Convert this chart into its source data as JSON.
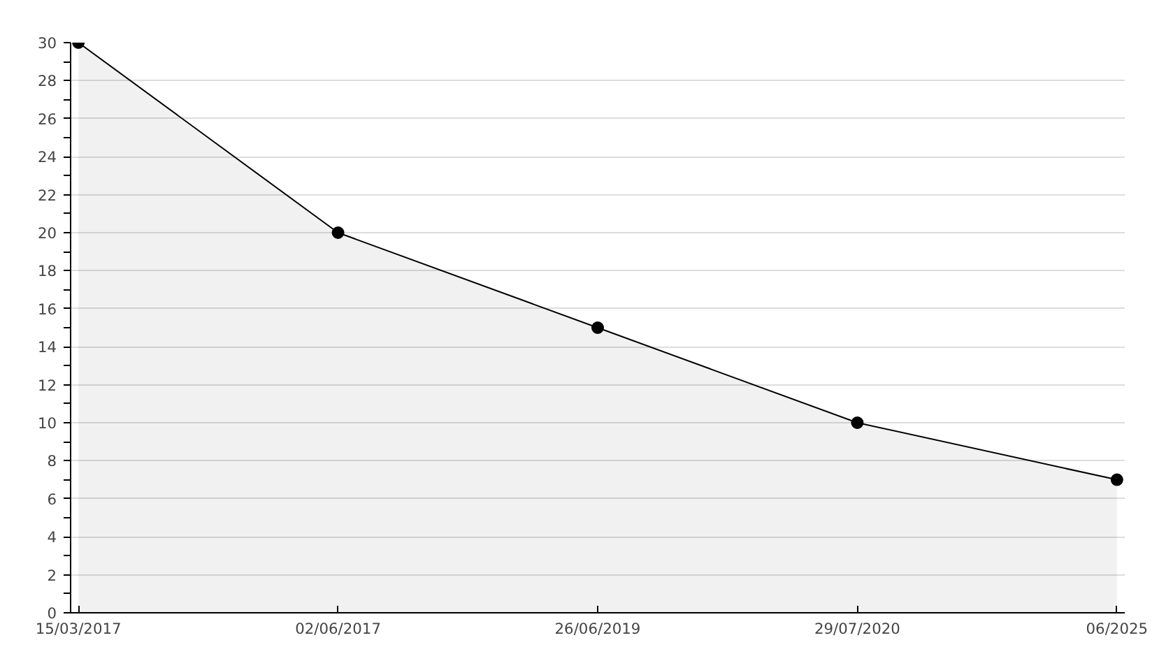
{
  "chart_data": {
    "type": "area",
    "categories": [
      "15/03/2017",
      "02/06/2017",
      "26/06/2019",
      "29/07/2020",
      "06/2025"
    ],
    "series": [
      {
        "color": "#000000",
        "values": [
          30,
          20,
          15,
          10,
          7
        ]
      }
    ],
    "ylim": [
      0,
      30
    ],
    "yticks": [
      0,
      {
        "value": 1,
        "label": null
      },
      2,
      {
        "value": 3,
        "label": null
      },
      4,
      {
        "value": 5,
        "label": null
      },
      6,
      {
        "value": 7,
        "label": null
      },
      8,
      {
        "value": 9,
        "label": null
      },
      10,
      {
        "value": 11,
        "label": null
      },
      12,
      {
        "value": 13,
        "label": null
      },
      14,
      {
        "value": 15,
        "label": null
      },
      16,
      {
        "value": 17,
        "label": null
      },
      18,
      {
        "value": 19,
        "label": null
      },
      20,
      {
        "value": 21,
        "label": null
      },
      22,
      {
        "value": 23,
        "label": null
      },
      24,
      {
        "value": 25,
        "label": null
      },
      26,
      {
        "value": 27,
        "label": null
      },
      28,
      {
        "value": 29,
        "label": null
      },
      30
    ],
    "grid": "y",
    "marker": "circle",
    "line_style": "solid"
  }
}
